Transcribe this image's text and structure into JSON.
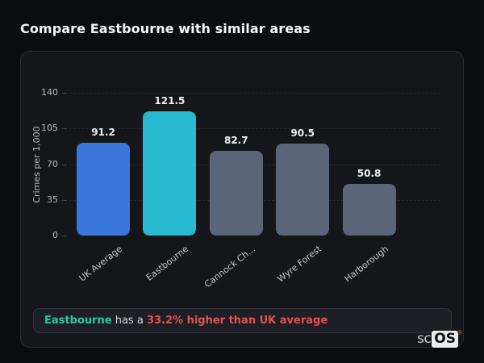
{
  "page": {
    "title": "Compare Eastbourne with similar areas"
  },
  "chart_data": {
    "type": "bar",
    "title": "Compare Eastbourne with similar areas",
    "xlabel": "",
    "ylabel": "Crimes per 1,000",
    "ylim": [
      0,
      140
    ],
    "yticks": [
      0,
      35,
      70,
      105,
      140
    ],
    "grid": "horizontal-dashed",
    "legend": "none",
    "categories": [
      "UK Average",
      "Eastbourne",
      "Cannock Ch...",
      "Wyre Forest",
      "Harborough"
    ],
    "values": [
      91.2,
      121.5,
      82.7,
      90.5,
      50.8
    ],
    "value_labels": [
      "91.2",
      "121.5",
      "82.7",
      "90.5",
      "50.8"
    ],
    "bar_colors": [
      "#3b76db",
      "#26b9cf",
      "#5b6579",
      "#5b6579",
      "#5b6579"
    ]
  },
  "note": {
    "highlight": "Eastbourne",
    "middle": " has a ",
    "stat": "33.2% higher than UK average",
    "highlight_color": "#2bc9a4",
    "stat_color": "#e05252"
  },
  "logo": {
    "prefix": "sc",
    "suffix": "OS",
    "registered": "®"
  }
}
